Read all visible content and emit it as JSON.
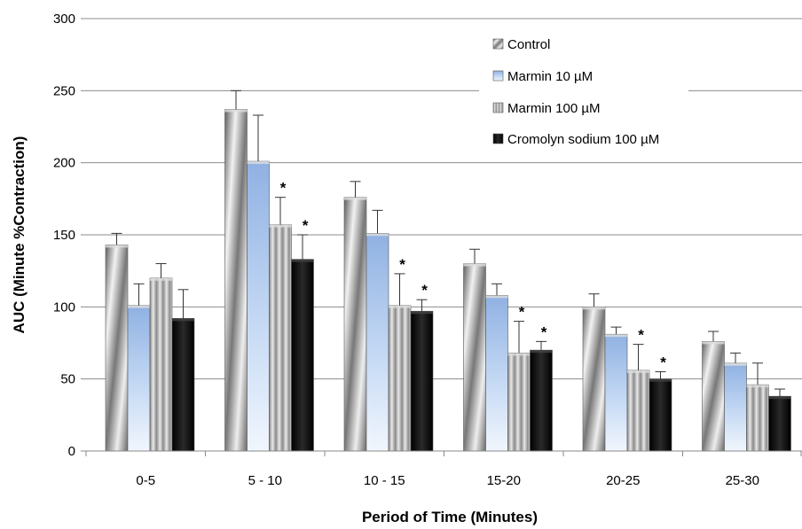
{
  "chart_data": {
    "type": "bar",
    "xlabel": "Period of Time (Minutes)",
    "ylabel": "AUC (Minute %Contraction)",
    "ylim": [
      0,
      300
    ],
    "yticks": [
      0,
      50,
      100,
      150,
      200,
      250,
      300
    ],
    "grid": true,
    "legend_position": "top-right",
    "categories": [
      "0-5",
      "5 - 10",
      "10 - 15",
      "15-20",
      "20-25",
      "25-30"
    ],
    "significance_marker": "*",
    "series": [
      {
        "name": "Control",
        "style": "gray-striped",
        "color": "#9a9a9a",
        "values": [
          143,
          237,
          176,
          130,
          100,
          76
        ],
        "error": [
          8,
          13,
          11,
          10,
          9,
          7
        ],
        "significant": [
          false,
          false,
          false,
          false,
          false,
          false
        ]
      },
      {
        "name": "Marmin 10 µM",
        "style": "light-blue",
        "color": "#a8c4ec",
        "values": [
          101,
          201,
          151,
          108,
          81,
          61
        ],
        "error": [
          15,
          32,
          16,
          8,
          5,
          7
        ],
        "significant": [
          false,
          false,
          false,
          false,
          false,
          false
        ]
      },
      {
        "name": "Marmin 100 µM",
        "style": "gray-vertical-stripes",
        "color": "#b0b0b0",
        "values": [
          120,
          157,
          101,
          68,
          56,
          46
        ],
        "error": [
          10,
          19,
          22,
          22,
          18,
          15
        ],
        "significant": [
          false,
          true,
          true,
          true,
          true,
          false
        ]
      },
      {
        "name": "Cromolyn sodium 100 µM",
        "style": "black",
        "color": "#111111",
        "values": [
          92,
          133,
          97,
          70,
          50,
          38
        ],
        "error": [
          20,
          17,
          8,
          6,
          5,
          5
        ],
        "significant": [
          false,
          true,
          true,
          true,
          true,
          false
        ]
      }
    ]
  }
}
